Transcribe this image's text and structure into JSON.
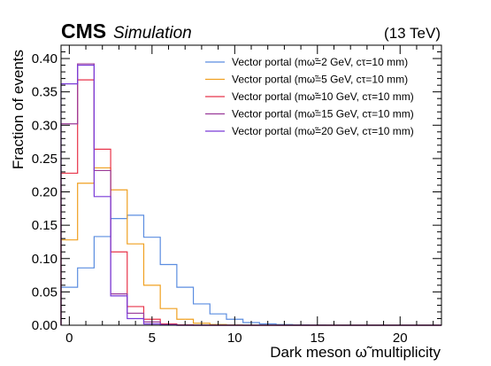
{
  "header": {
    "experiment": "CMS",
    "qualifier": "Simulation",
    "energy": "(13 TeV)"
  },
  "chart_data": {
    "type": "histogram",
    "xlabel": "Dark meson ω̃ multiplicity",
    "ylabel": "Fraction of events",
    "xlim": [
      -0.5,
      22.5
    ],
    "ylim": [
      0,
      0.42
    ],
    "xticks": [
      0,
      5,
      10,
      15,
      20
    ],
    "xtick_labels": [
      "0",
      "5",
      "10",
      "15",
      "20"
    ],
    "yticks": [
      0,
      0.05,
      0.1,
      0.15,
      0.2,
      0.25,
      0.3,
      0.35,
      0.4
    ],
    "ytick_labels": [
      "0.00",
      "0.05",
      "0.10",
      "0.15",
      "0.20",
      "0.25",
      "0.30",
      "0.35",
      "0.40"
    ],
    "bin_edges": [
      -0.5,
      0.5,
      1.5,
      2.5,
      3.5,
      4.5,
      5.5,
      6.5,
      7.5,
      8.5,
      9.5,
      10.5,
      11.5,
      12.5,
      13.5,
      14.5,
      15.5,
      16.5,
      17.5,
      18.5,
      19.5,
      20.5,
      21.5,
      22.5
    ],
    "grid": false,
    "legend_position": "top-right",
    "series": [
      {
        "name": "Vector portal (mω̃=2 GeV, cτ=10 mm)",
        "color": "#5b8de0",
        "values": [
          0.057,
          0.086,
          0.133,
          0.16,
          0.165,
          0.132,
          0.091,
          0.057,
          0.032,
          0.017,
          0.009,
          0.004,
          0.002,
          0.001,
          0.0005,
          0.0002,
          0.0001,
          0,
          0,
          0,
          0,
          0,
          0
        ]
      },
      {
        "name": "Vector portal (mω̃=5 GeV, cτ=10 mm)",
        "color": "#f0a020",
        "values": [
          0.128,
          0.213,
          0.236,
          0.203,
          0.122,
          0.06,
          0.025,
          0.009,
          0.003,
          0.001,
          0.0003,
          0,
          0,
          0,
          0,
          0,
          0,
          0,
          0,
          0,
          0,
          0,
          0
        ]
      },
      {
        "name": "Vector portal (mω̃=10 GeV, cτ=10 mm)",
        "color": "#e8344a",
        "values": [
          0.228,
          0.368,
          0.264,
          0.11,
          0.028,
          0.009,
          0.002,
          0.0005,
          0,
          0,
          0,
          0,
          0,
          0,
          0,
          0,
          0,
          0,
          0,
          0,
          0,
          0,
          0
        ]
      },
      {
        "name": "Vector portal (mω̃=15 GeV, cτ=10 mm)",
        "color": "#9a3a9a",
        "values": [
          0.302,
          0.392,
          0.232,
          0.047,
          0.018,
          0.005,
          0.001,
          0,
          0,
          0,
          0,
          0,
          0,
          0,
          0,
          0,
          0,
          0,
          0,
          0,
          0,
          0,
          0
        ]
      },
      {
        "name": "Vector portal (mω̃=20 GeV, cτ=10 mm)",
        "color": "#7a3ad8",
        "values": [
          0.362,
          0.39,
          0.193,
          0.044,
          0.01,
          0.002,
          0.0005,
          0,
          0,
          0,
          0,
          0,
          0,
          0,
          0,
          0,
          0,
          0,
          0,
          0,
          0,
          0,
          0
        ]
      }
    ]
  }
}
